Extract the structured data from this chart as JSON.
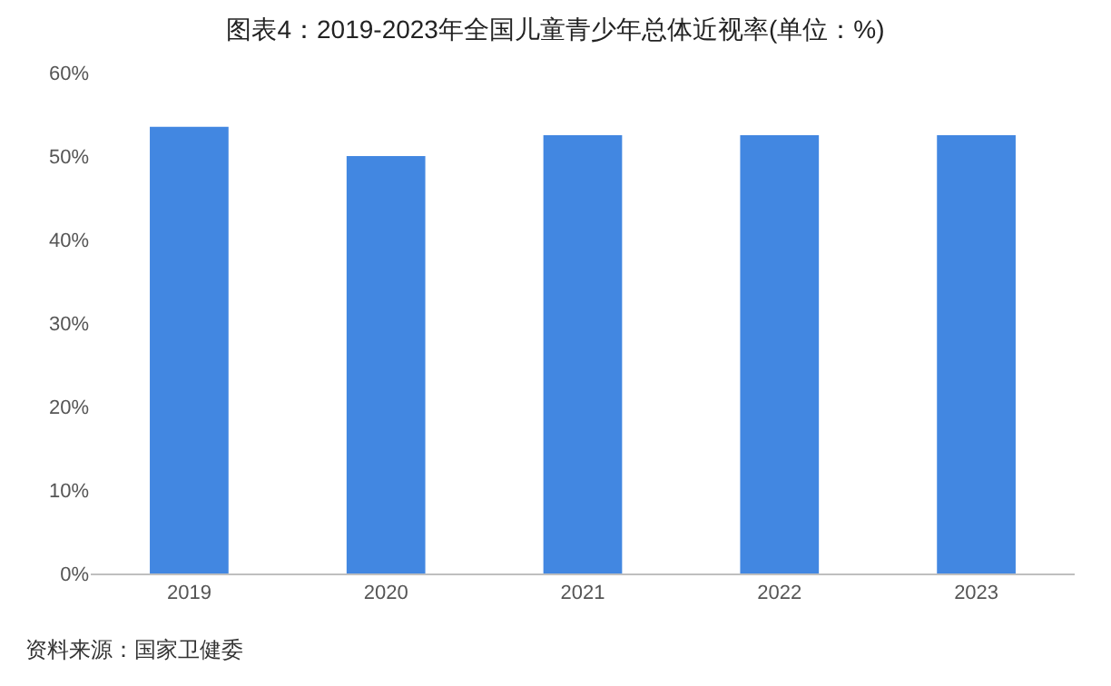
{
  "chart_data": {
    "type": "bar",
    "title": "图表4：2019-2023年全国儿童青少年总体近视率(单位：%)",
    "categories": [
      "2019",
      "2020",
      "2021",
      "2022",
      "2023"
    ],
    "values": [
      53.5,
      50.0,
      52.5,
      52.5,
      52.5
    ],
    "color": "#4287e1",
    "ylim": [
      0,
      60
    ],
    "yticks": [
      {
        "value": 0,
        "label": "0%"
      },
      {
        "value": 10,
        "label": "10%"
      },
      {
        "value": 20,
        "label": "20%"
      },
      {
        "value": 30,
        "label": "30%"
      },
      {
        "value": 40,
        "label": "40%"
      },
      {
        "value": 50,
        "label": "50%"
      },
      {
        "value": 60,
        "label": "60%"
      }
    ],
    "grid": false,
    "legend": false,
    "annotations": [
      "资料来源：国家卫健委"
    ]
  }
}
